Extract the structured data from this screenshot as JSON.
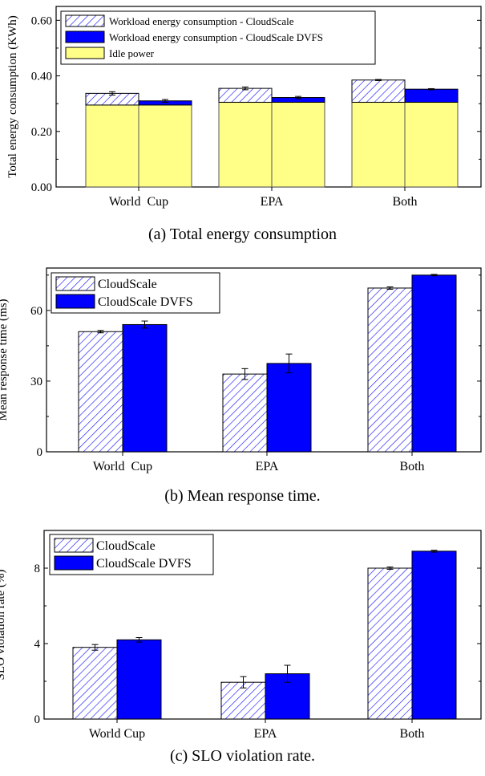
{
  "colors": {
    "cloudscale_pattern": "#1a1aff",
    "cloudscale_dvfs": "#0000ff",
    "idle_power": "#ffff88",
    "axis": "#000000"
  },
  "chart_data": [
    {
      "type": "bar",
      "stacked": true,
      "caption": "(a) Total energy consumption",
      "categories": [
        "World  Cup",
        "EPA",
        "Both"
      ],
      "ylabel": "Total energy consumption (KWh)",
      "ylim": [
        0,
        0.65
      ],
      "yticks": [
        0.0,
        0.2,
        0.4,
        0.6
      ],
      "ytick_labels": [
        "0.00",
        "0.20",
        "0.40",
        "0.60"
      ],
      "legend_position": "top-left",
      "legend": [
        {
          "label": "Workload energy consumption - CloudScale",
          "style": "hatch"
        },
        {
          "label": "Workload energy consumption - CloudScale DVFS",
          "style": "solid-blue"
        },
        {
          "label": "Idle power",
          "style": "solid-yellow"
        }
      ],
      "series": [
        {
          "name": "CloudScale",
          "idle": [
            0.295,
            0.305,
            0.305
          ],
          "total": [
            0.337,
            0.355,
            0.385
          ],
          "error": [
            0.006,
            0.005,
            0.002
          ]
        },
        {
          "name": "CloudScale DVFS",
          "idle": [
            0.295,
            0.305,
            0.305
          ],
          "total": [
            0.31,
            0.322,
            0.352
          ],
          "error": [
            0.005,
            0.004,
            0.002
          ]
        }
      ]
    },
    {
      "type": "bar",
      "caption": "(b) Mean response time.",
      "categories": [
        "World  Cup",
        "EPA",
        "Both"
      ],
      "ylabel": "Mean response time (ms)",
      "ylim": [
        0,
        78
      ],
      "yticks": [
        0,
        30,
        60
      ],
      "ytick_labels": [
        "0",
        "30",
        "60"
      ],
      "legend_position": "top-left",
      "series": [
        {
          "name": "CloudScale",
          "style": "hatch",
          "values": [
            51,
            33,
            69.5
          ],
          "error": [
            0.5,
            2.3,
            0.5
          ]
        },
        {
          "name": "CloudScale DVFS",
          "style": "solid-blue",
          "values": [
            54,
            37.5,
            75
          ],
          "error": [
            1.5,
            4,
            0.3
          ]
        }
      ]
    },
    {
      "type": "bar",
      "caption": "(c) SLO violation rate.",
      "categories": [
        "World Cup",
        "EPA",
        "Both"
      ],
      "ylabel": "SLO violation rate (%)",
      "ylim": [
        0,
        10
      ],
      "yticks": [
        0,
        4,
        8
      ],
      "ytick_labels": [
        "0",
        "4",
        "8"
      ],
      "legend_position": "top-left",
      "series": [
        {
          "name": "CloudScale",
          "style": "hatch",
          "values": [
            3.8,
            1.95,
            8.0
          ],
          "error": [
            0.15,
            0.3,
            0.06
          ]
        },
        {
          "name": "CloudScale DVFS",
          "style": "solid-blue",
          "values": [
            4.2,
            2.4,
            8.9
          ],
          "error": [
            0.12,
            0.45,
            0.05
          ]
        }
      ]
    }
  ]
}
